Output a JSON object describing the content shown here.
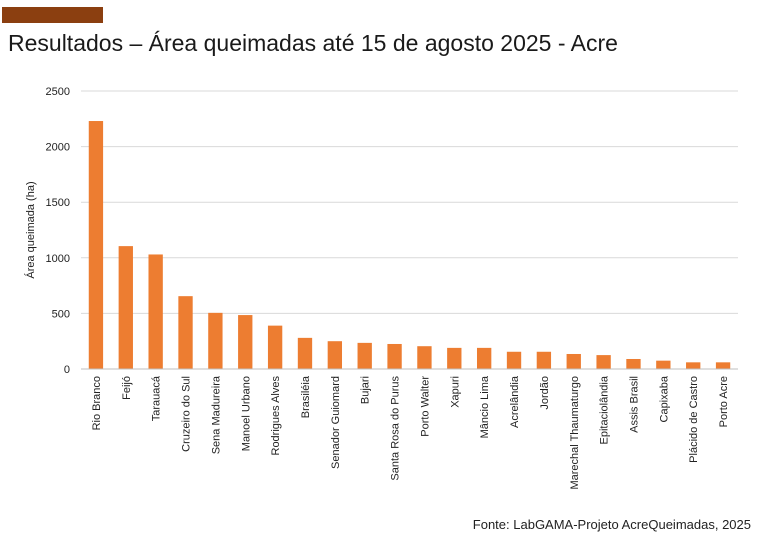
{
  "header": {
    "accent_color": "#8b3f10",
    "title": "Resultados – Área queimadas até 15 de agosto 2025 - Acre"
  },
  "footer": {
    "source": "Fonte: LabGAMA-Projeto AcreQueimadas, 2025"
  },
  "chart_data": {
    "type": "bar",
    "title": "Resultados – Área queimadas até 15 de agosto 2025 - Acre",
    "xlabel": "",
    "ylabel": "Área queimada (ha)",
    "ylim": [
      0,
      2500
    ],
    "yticks": [
      0,
      500,
      1000,
      1500,
      2000,
      2500
    ],
    "grid": true,
    "legend": "none",
    "bar_color": "#ed7d31",
    "categories": [
      "Rio Branco",
      "Feijó",
      "Tarauacá",
      "Cruzeiro do Sul",
      "Sena Madureira",
      "Manoel Urbano",
      "Rodrigues Alves",
      "Brasiléia",
      "Senador Guiomard",
      "Bujari",
      "Santa Rosa do Purus",
      "Porto Walter",
      "Xapuri",
      "Mâncio Lima",
      "Acrelândia",
      "Jordão",
      "Marechal Thaumaturgo",
      "Epitaciolândia",
      "Assis Brasil",
      "Capixaba",
      "Plácido de Castro",
      "Porto Acre"
    ],
    "values": [
      2230,
      1105,
      1030,
      655,
      505,
      485,
      390,
      280,
      250,
      235,
      225,
      205,
      190,
      190,
      155,
      155,
      135,
      125,
      90,
      75,
      60,
      60
    ]
  }
}
